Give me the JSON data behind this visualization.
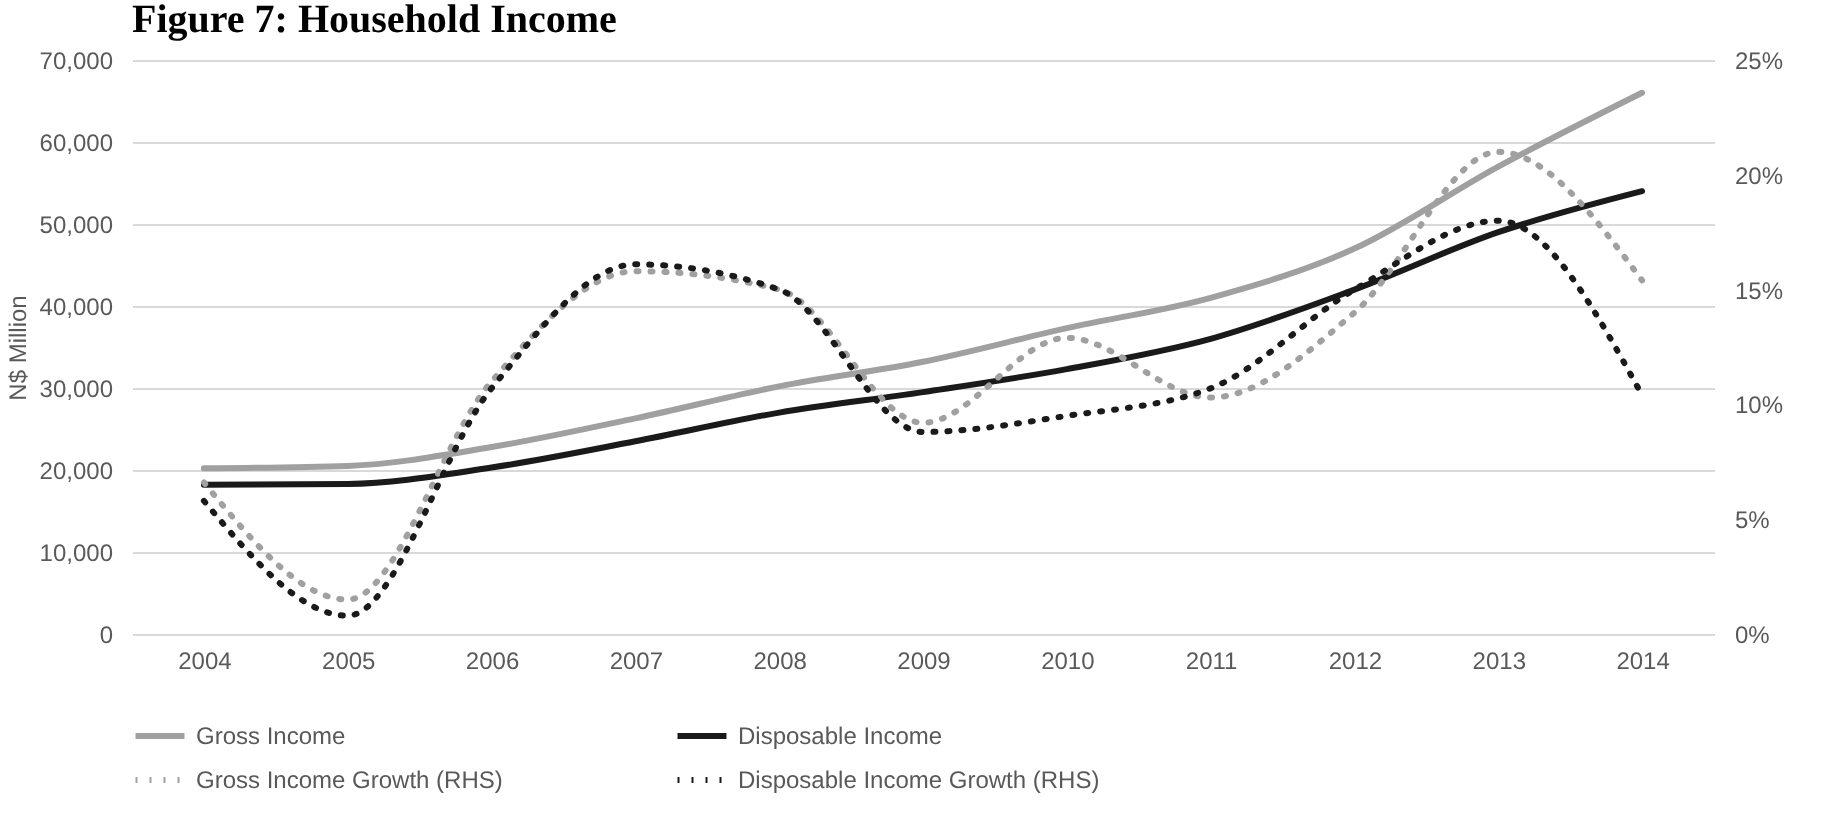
{
  "chart_data": {
    "type": "line",
    "title": "Figure 7: Household Income",
    "ylabel": "N$ Million",
    "categories": [
      "2004",
      "2005",
      "2006",
      "2007",
      "2008",
      "2009",
      "2010",
      "2011",
      "2012",
      "2013",
      "2014"
    ],
    "series": [
      {
        "name": "Gross Income",
        "color": "#a0a0a0",
        "line_style": "solid",
        "values": [
          20200,
          20500,
          22800,
          26300,
          30200,
          33200,
          37300,
          41000,
          47000,
          57000,
          66000
        ]
      },
      {
        "name": "Disposable Income",
        "color": "#1a1a1a",
        "line_style": "solid",
        "values": [
          18200,
          18300,
          20300,
          23500,
          27000,
          29500,
          32300,
          36000,
          42000,
          49000,
          54000
        ]
      },
      {
        "name": "Gross Income Growth (RHS)",
        "color": "#a0a0a0",
        "line_style": "dotted",
        "axis": "y2",
        "values": [
          6.6,
          1.5,
          11,
          15.8,
          15,
          9.2,
          12.9,
          10.3,
          14,
          21,
          15.4
        ]
      },
      {
        "name": "Disposable Income Growth (RHS)",
        "color": "#1a1a1a",
        "line_style": "dotted",
        "axis": "y2",
        "values": [
          5.8,
          0.8,
          10.7,
          16.1,
          15,
          8.8,
          9.5,
          10.7,
          15,
          18,
          10.4
        ]
      }
    ],
    "ylim": [
      0,
      70000
    ],
    "yticks": [
      {
        "value": 0,
        "label": "0"
      },
      {
        "value": 10000,
        "label": "10,000"
      },
      {
        "value": 20000,
        "label": "20,000"
      },
      {
        "value": 30000,
        "label": "30,000"
      },
      {
        "value": 40000,
        "label": "40,000"
      },
      {
        "value": 50000,
        "label": "50,000"
      },
      {
        "value": 60000,
        "label": "60,000"
      },
      {
        "value": 70000,
        "label": "70,000"
      }
    ],
    "y2lim": [
      0,
      25
    ],
    "y2ticks": [
      {
        "value": 0,
        "label": "0%"
      },
      {
        "value": 5,
        "label": "5%"
      },
      {
        "value": 10,
        "label": "10%"
      },
      {
        "value": 15,
        "label": "15%"
      },
      {
        "value": 20,
        "label": "20%"
      },
      {
        "value": 25,
        "label": "25%"
      }
    ],
    "grid": "y",
    "legend": "bottom",
    "marker": "none"
  }
}
